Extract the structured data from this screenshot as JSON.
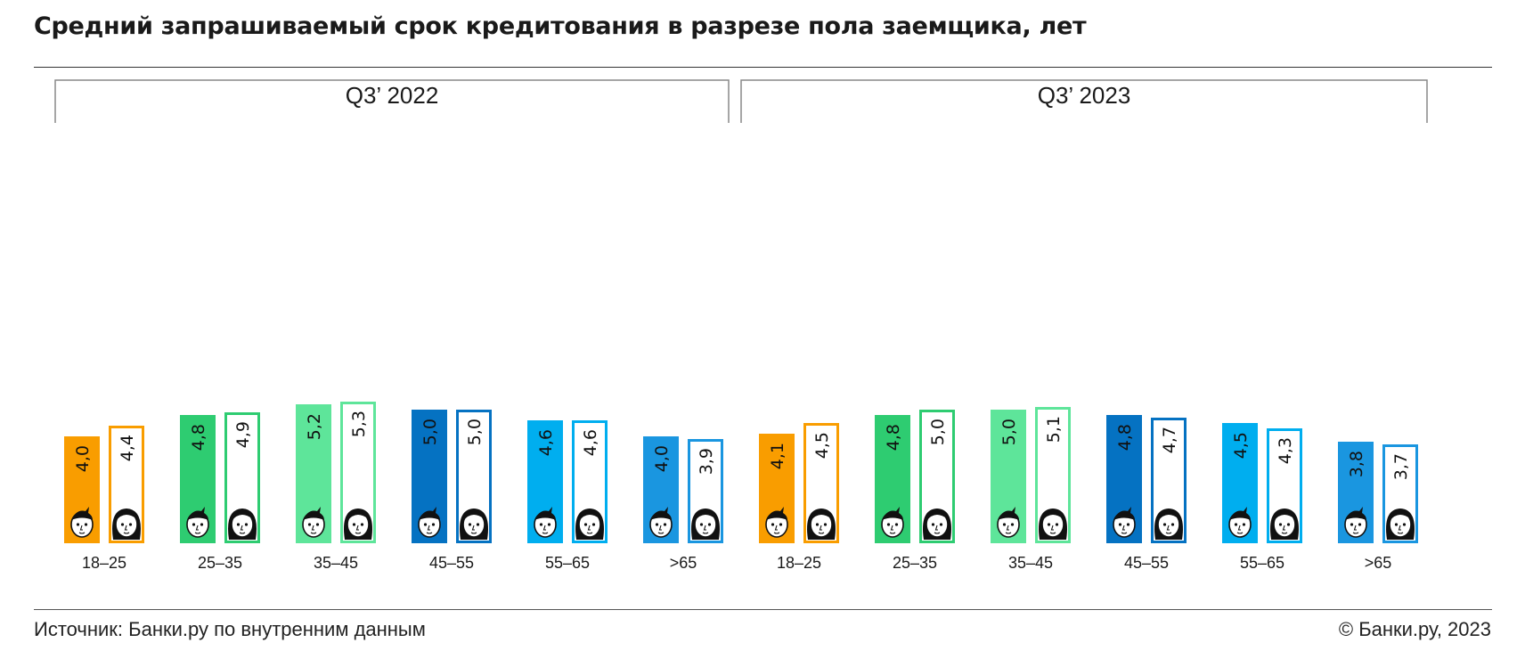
{
  "title": "Средний запрашиваемый срок кредитования в разрезе пола заемщика, лет",
  "footer": {
    "source": "Источник: Банки.ру по внутренним данным",
    "copyright": "© Банки.ру, 2023"
  },
  "chart_data": {
    "type": "bar",
    "title": "Средний запрашиваемый срок кредитования в разрезе пола заемщика, лет",
    "groups": [
      "Q3’ 2022",
      "Q3’ 2023"
    ],
    "categories": [
      "18–25",
      "25–35",
      "35–45",
      "45–55",
      "55–65",
      ">65"
    ],
    "series": [
      {
        "marker": "man-face-icon",
        "style": "filled",
        "values_by_group": [
          [
            4.0,
            4.8,
            5.2,
            5.0,
            4.6,
            4.0
          ],
          [
            4.1,
            4.8,
            5.0,
            4.8,
            4.5,
            3.8
          ]
        ]
      },
      {
        "marker": "woman-face-icon",
        "style": "outline",
        "values_by_group": [
          [
            4.4,
            4.9,
            5.3,
            5.0,
            4.6,
            3.9
          ],
          [
            4.5,
            5.0,
            5.1,
            4.7,
            4.3,
            3.7
          ]
        ]
      }
    ],
    "value_labels": [
      [
        "4,0",
        "4,4",
        "4,8",
        "4,9",
        "5,2",
        "5,3",
        "5,0",
        "5,0",
        "4,6",
        "4,6",
        "4,0",
        "3,9"
      ],
      [
        "4,1",
        "4,5",
        "4,8",
        "5,0",
        "5,0",
        "5,1",
        "4,8",
        "4,7",
        "4,5",
        "4,3",
        "3,8",
        "3,7"
      ]
    ],
    "category_colors": [
      "#f99d00",
      "#2ecc71",
      "#5ee59a",
      "#0572c2",
      "#00aeef",
      "#1a96e0"
    ],
    "ylim": [
      0,
      5.5
    ],
    "xlabel": "",
    "ylabel": "",
    "grid": false,
    "legend": "none"
  }
}
